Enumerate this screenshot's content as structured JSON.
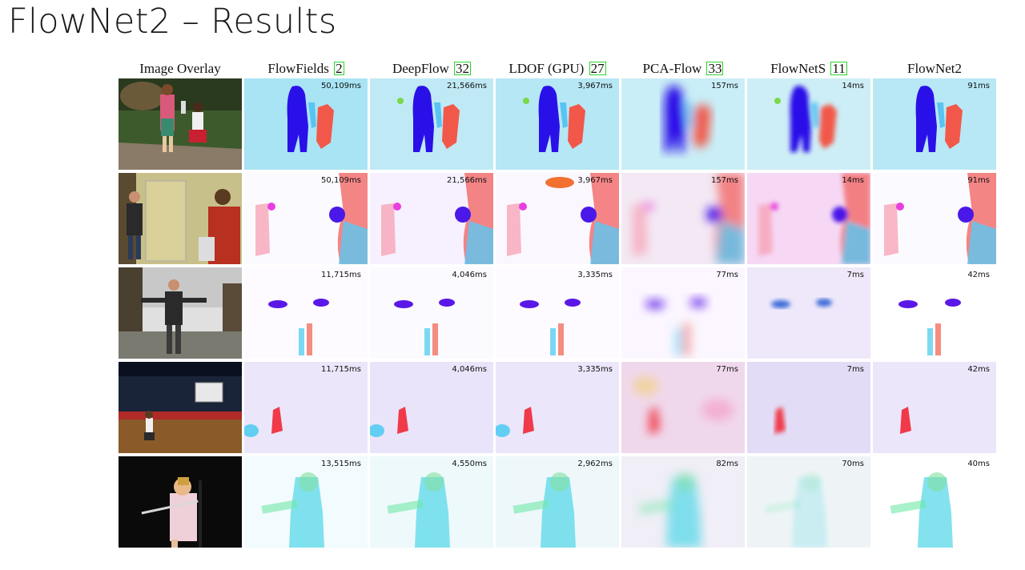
{
  "title": "FlowNet2 – Results",
  "columns": [
    {
      "label": "Image Overlay",
      "ref": ""
    },
    {
      "label": "FlowFields",
      "ref": "2"
    },
    {
      "label": "DeepFlow",
      "ref": "32"
    },
    {
      "label": "LDOF (GPU)",
      "ref": "27"
    },
    {
      "label": "PCA-Flow",
      "ref": "33"
    },
    {
      "label": "FlowNetS",
      "ref": "11"
    },
    {
      "label": "FlowNet2",
      "ref": ""
    }
  ],
  "rows": [
    {
      "scene": "children-yard",
      "timings": [
        "50,109ms",
        "21,566ms",
        "3,967ms",
        "157ms",
        "14ms",
        "91ms"
      ]
    },
    {
      "scene": "room-juggling",
      "timings": [
        "50,109ms",
        "21,566ms",
        "3,967ms",
        "157ms",
        "14ms",
        "91ms"
      ]
    },
    {
      "scene": "man-driveway",
      "timings": [
        "11,715ms",
        "4,046ms",
        "3,335ms",
        "77ms",
        "7ms",
        "42ms"
      ]
    },
    {
      "scene": "basketball-gym",
      "timings": [
        "11,715ms",
        "4,046ms",
        "3,335ms",
        "77ms",
        "7ms",
        "42ms"
      ]
    },
    {
      "scene": "girl-flute",
      "timings": [
        "13,515ms",
        "4,550ms",
        "2,962ms",
        "82ms",
        "70ms",
        "40ms"
      ]
    }
  ],
  "colors": {
    "ref_box": "#2fd42f",
    "flow_background": "#c4ebf6",
    "flow_blue": "#2a10e8",
    "flow_red": "#f25a4c"
  }
}
